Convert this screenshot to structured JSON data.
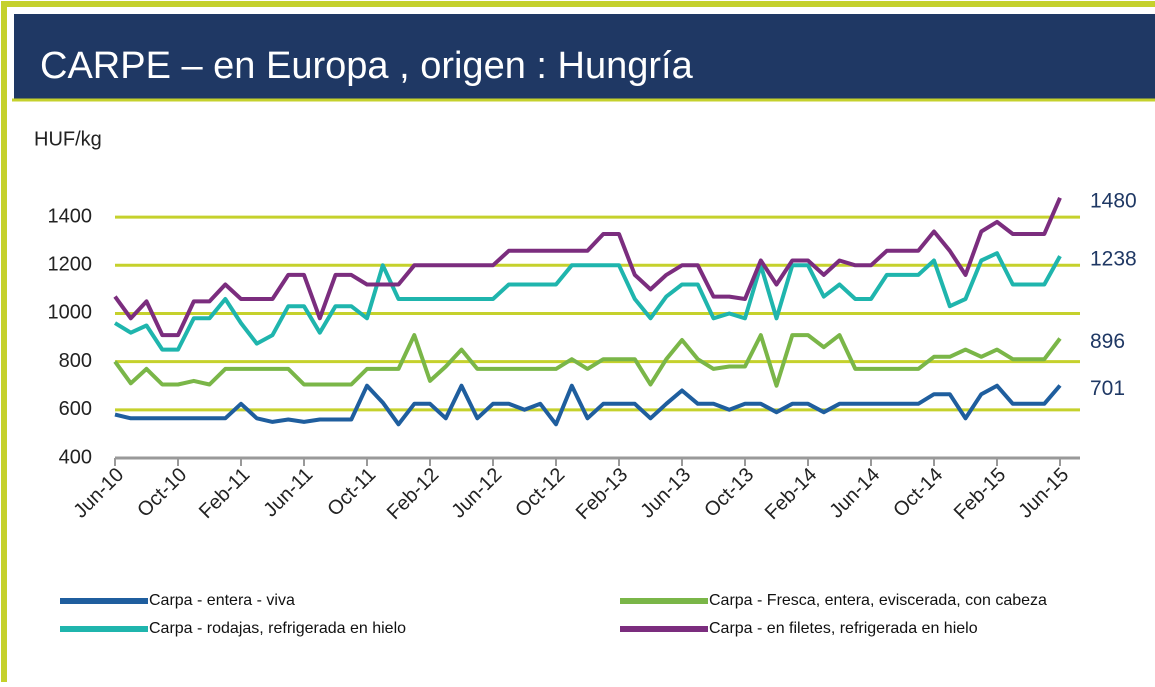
{
  "chart_data": {
    "type": "line",
    "title": "CARPE – en Europa , origen : Hungría",
    "y_label": "HUF/kg",
    "categories": [
      "Jun-10",
      null,
      null,
      null,
      "Oct-10",
      null,
      null,
      null,
      "Feb-11",
      null,
      null,
      null,
      "Jun-11",
      null,
      null,
      null,
      "Oct-11",
      null,
      null,
      null,
      "Feb-12",
      null,
      null,
      null,
      "Jun-12",
      null,
      null,
      null,
      "Oct-12",
      null,
      null,
      null,
      "Feb-13",
      null,
      null,
      null,
      "Jun-13",
      null,
      null,
      null,
      "Oct-13",
      null,
      null,
      null,
      "Feb-14",
      null,
      null,
      null,
      "Jun-14",
      null,
      null,
      null,
      "Oct-14",
      null,
      null,
      null,
      "Feb-15",
      null,
      null,
      null,
      "Jun-15"
    ],
    "ylim": [
      400,
      1500
    ],
    "yticks": [
      400,
      600,
      800,
      1000,
      1200,
      1400
    ],
    "grid": true,
    "series": [
      {
        "name": "Carpa - entera - viva",
        "color": "#1f5e9e",
        "values": [
          580,
          565,
          565,
          565,
          565,
          565,
          565,
          565,
          625,
          565,
          550,
          560,
          550,
          560,
          560,
          560,
          700,
          630,
          540,
          625,
          625,
          565,
          700,
          565,
          625,
          625,
          600,
          625,
          540,
          700,
          565,
          625,
          625,
          625,
          565,
          625,
          680,
          625,
          625,
          600,
          625,
          625,
          590,
          625,
          625,
          590,
          625,
          625,
          625,
          625,
          625,
          625,
          665,
          665,
          565,
          665,
          700,
          625,
          625,
          625,
          701
        ]
      },
      {
        "name": "Carpa - rodajas, refrigerada en hielo",
        "color": "#1fb5ad",
        "values": [
          960,
          920,
          950,
          850,
          850,
          980,
          980,
          1060,
          960,
          875,
          910,
          1030,
          1030,
          920,
          1030,
          1030,
          980,
          1200,
          1060,
          1060,
          1060,
          1060,
          1060,
          1060,
          1060,
          1120,
          1120,
          1120,
          1120,
          1200,
          1200,
          1200,
          1200,
          1060,
          980,
          1070,
          1120,
          1120,
          980,
          1000,
          980,
          1200,
          980,
          1200,
          1200,
          1070,
          1120,
          1060,
          1060,
          1160,
          1160,
          1160,
          1220,
          1030,
          1060,
          1220,
          1250,
          1120,
          1120,
          1120,
          1238
        ]
      },
      {
        "name": "Carpa - Fresca, entera, eviscerada, con cabeza",
        "color": "#7ab648",
        "values": [
          800,
          710,
          770,
          705,
          705,
          720,
          705,
          770,
          770,
          770,
          770,
          770,
          705,
          705,
          705,
          705,
          770,
          770,
          770,
          910,
          720,
          780,
          850,
          770,
          770,
          770,
          770,
          770,
          770,
          810,
          770,
          810,
          810,
          810,
          705,
          810,
          890,
          810,
          770,
          780,
          780,
          910,
          700,
          910,
          910,
          860,
          910,
          770,
          770,
          770,
          770,
          770,
          820,
          820,
          850,
          820,
          850,
          810,
          810,
          810,
          896
        ]
      },
      {
        "name": "Carpa - en filetes, refrigerada en hielo",
        "color": "#7b2d7e",
        "values": [
          1070,
          980,
          1050,
          910,
          910,
          1050,
          1050,
          1120,
          1060,
          1060,
          1060,
          1160,
          1160,
          980,
          1160,
          1160,
          1120,
          1120,
          1120,
          1200,
          1200,
          1200,
          1200,
          1200,
          1200,
          1260,
          1260,
          1260,
          1260,
          1260,
          1260,
          1330,
          1330,
          1160,
          1100,
          1160,
          1200,
          1200,
          1070,
          1070,
          1060,
          1220,
          1120,
          1220,
          1220,
          1160,
          1220,
          1200,
          1200,
          1260,
          1260,
          1260,
          1340,
          1260,
          1160,
          1340,
          1380,
          1330,
          1330,
          1330,
          1480
        ]
      }
    ]
  }
}
